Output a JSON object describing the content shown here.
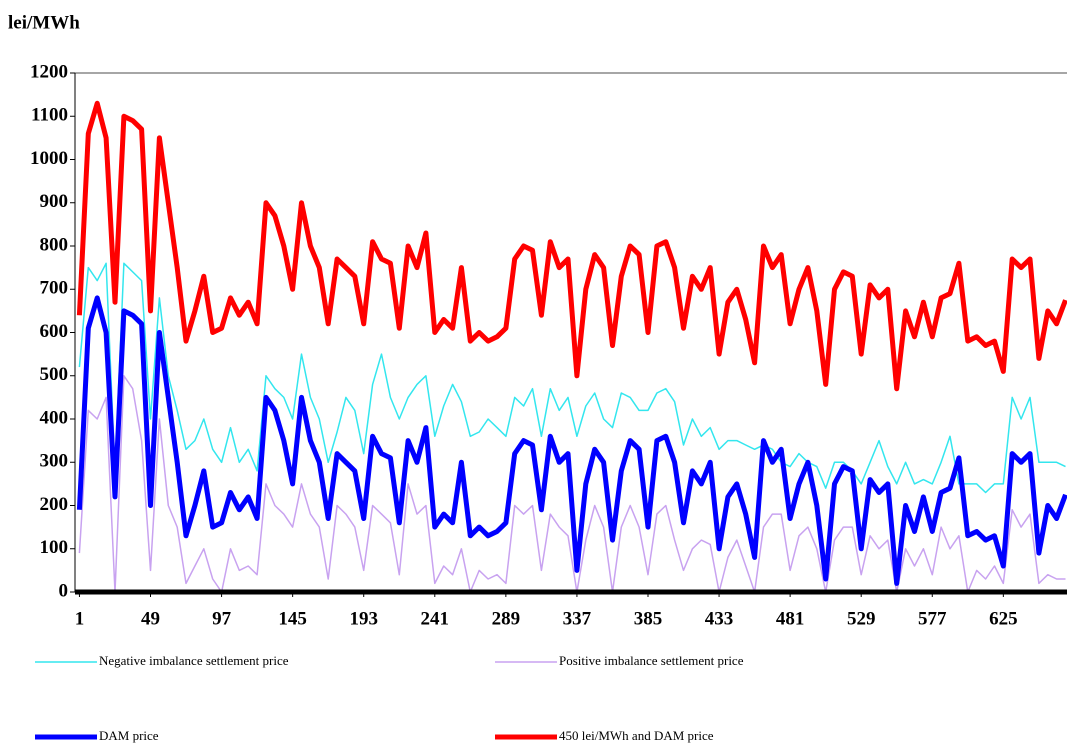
{
  "chart_data": {
    "type": "line",
    "y_label": "lei/MWh",
    "x": [
      1,
      7,
      13,
      19,
      25,
      31,
      37,
      43,
      49,
      55,
      61,
      67,
      73,
      79,
      85,
      91,
      97,
      103,
      109,
      115,
      121,
      127,
      133,
      139,
      145,
      151,
      157,
      163,
      169,
      175,
      181,
      187,
      193,
      199,
      205,
      211,
      217,
      223,
      229,
      235,
      241,
      247,
      253,
      259,
      265,
      271,
      277,
      283,
      289,
      295,
      301,
      307,
      313,
      319,
      325,
      331,
      337,
      343,
      349,
      355,
      361,
      367,
      373,
      379,
      385,
      391,
      397,
      403,
      409,
      415,
      421,
      427,
      433,
      439,
      445,
      451,
      457,
      463,
      469,
      475,
      481,
      487,
      493,
      499,
      505,
      511,
      517,
      523,
      529,
      535,
      541,
      547,
      553,
      559,
      565,
      571,
      577,
      583,
      589,
      595,
      601,
      607,
      613,
      619,
      625,
      631,
      637,
      643,
      649,
      655,
      661,
      667
    ],
    "xlim": [
      -2,
      668
    ],
    "xticks": [
      1,
      49,
      97,
      145,
      193,
      241,
      289,
      337,
      385,
      433,
      481,
      529,
      577,
      625
    ],
    "ylim": [
      0,
      1200
    ],
    "yticks": [
      0,
      100,
      200,
      300,
      400,
      500,
      600,
      700,
      800,
      900,
      1000,
      1100,
      1200
    ],
    "series": [
      {
        "name": "Negative imbalance settlement price",
        "color": "#33e6ee",
        "width": 1.5,
        "values": [
          520,
          750,
          720,
          760,
          280,
          760,
          740,
          720,
          400,
          680,
          500,
          420,
          330,
          350,
          400,
          330,
          300,
          380,
          300,
          330,
          280,
          500,
          470,
          450,
          400,
          550,
          450,
          400,
          300,
          370,
          450,
          420,
          320,
          480,
          550,
          450,
          400,
          450,
          480,
          500,
          360,
          430,
          480,
          440,
          360,
          370,
          400,
          380,
          360,
          450,
          430,
          470,
          360,
          470,
          420,
          450,
          360,
          430,
          460,
          400,
          380,
          460,
          450,
          420,
          420,
          460,
          470,
          440,
          340,
          400,
          360,
          380,
          330,
          350,
          350,
          340,
          330,
          340,
          330,
          300,
          290,
          320,
          300,
          290,
          240,
          300,
          300,
          280,
          250,
          300,
          350,
          290,
          250,
          300,
          250,
          260,
          250,
          300,
          360,
          250,
          250,
          250,
          230,
          250,
          250,
          450,
          400,
          450,
          300,
          300,
          300,
          290
        ]
      },
      {
        "name": "Positive imbalance settlement price",
        "color": "#c8a2f0",
        "width": 1.5,
        "values": [
          90,
          420,
          400,
          450,
          0,
          500,
          470,
          350,
          50,
          400,
          200,
          150,
          20,
          60,
          100,
          30,
          0,
          100,
          50,
          60,
          40,
          250,
          200,
          180,
          150,
          250,
          180,
          150,
          30,
          200,
          180,
          150,
          50,
          200,
          180,
          160,
          40,
          250,
          180,
          200,
          20,
          60,
          40,
          100,
          0,
          50,
          30,
          40,
          20,
          200,
          180,
          200,
          50,
          180,
          150,
          130,
          0,
          120,
          200,
          150,
          0,
          150,
          200,
          150,
          40,
          180,
          200,
          120,
          50,
          100,
          120,
          110,
          0,
          80,
          120,
          60,
          0,
          150,
          180,
          180,
          50,
          130,
          150,
          100,
          0,
          120,
          150,
          150,
          40,
          130,
          100,
          120,
          0,
          100,
          60,
          100,
          40,
          150,
          100,
          130,
          0,
          50,
          30,
          60,
          20,
          190,
          150,
          180,
          20,
          40,
          30,
          30
        ]
      },
      {
        "name": "DAM price",
        "color": "#0000ff",
        "width": 5,
        "values": [
          190,
          610,
          680,
          600,
          220,
          650,
          640,
          620,
          200,
          600,
          450,
          300,
          130,
          200,
          280,
          150,
          160,
          230,
          190,
          220,
          170,
          450,
          420,
          350,
          250,
          450,
          350,
          300,
          170,
          320,
          300,
          280,
          170,
          360,
          320,
          310,
          160,
          350,
          300,
          380,
          150,
          180,
          160,
          300,
          130,
          150,
          130,
          140,
          160,
          320,
          350,
          340,
          190,
          360,
          300,
          320,
          50,
          250,
          330,
          300,
          120,
          280,
          350,
          330,
          150,
          350,
          360,
          300,
          160,
          280,
          250,
          300,
          100,
          220,
          250,
          180,
          80,
          350,
          300,
          330,
          170,
          250,
          300,
          200,
          30,
          250,
          290,
          280,
          100,
          260,
          230,
          250,
          20,
          200,
          140,
          220,
          140,
          230,
          240,
          310,
          130,
          140,
          120,
          130,
          60,
          320,
          300,
          320,
          90,
          200,
          170,
          225
        ]
      },
      {
        "name": "450 lei/MWh and DAM price",
        "color": "#ff0000",
        "width": 5,
        "values": [
          640,
          1060,
          1130,
          1050,
          670,
          1100,
          1090,
          1070,
          650,
          1050,
          900,
          750,
          580,
          650,
          730,
          600,
          610,
          680,
          640,
          670,
          620,
          900,
          870,
          800,
          700,
          900,
          800,
          750,
          620,
          770,
          750,
          730,
          620,
          810,
          770,
          760,
          610,
          800,
          750,
          830,
          600,
          630,
          610,
          750,
          580,
          600,
          580,
          590,
          610,
          770,
          800,
          790,
          640,
          810,
          750,
          770,
          500,
          700,
          780,
          750,
          570,
          730,
          800,
          780,
          600,
          800,
          810,
          750,
          610,
          730,
          700,
          750,
          550,
          670,
          700,
          630,
          530,
          800,
          750,
          780,
          620,
          700,
          750,
          650,
          480,
          700,
          740,
          730,
          550,
          710,
          680,
          700,
          470,
          650,
          590,
          670,
          590,
          680,
          690,
          760,
          580,
          590,
          570,
          580,
          510,
          770,
          750,
          770,
          540,
          650,
          620,
          675
        ]
      }
    ]
  }
}
